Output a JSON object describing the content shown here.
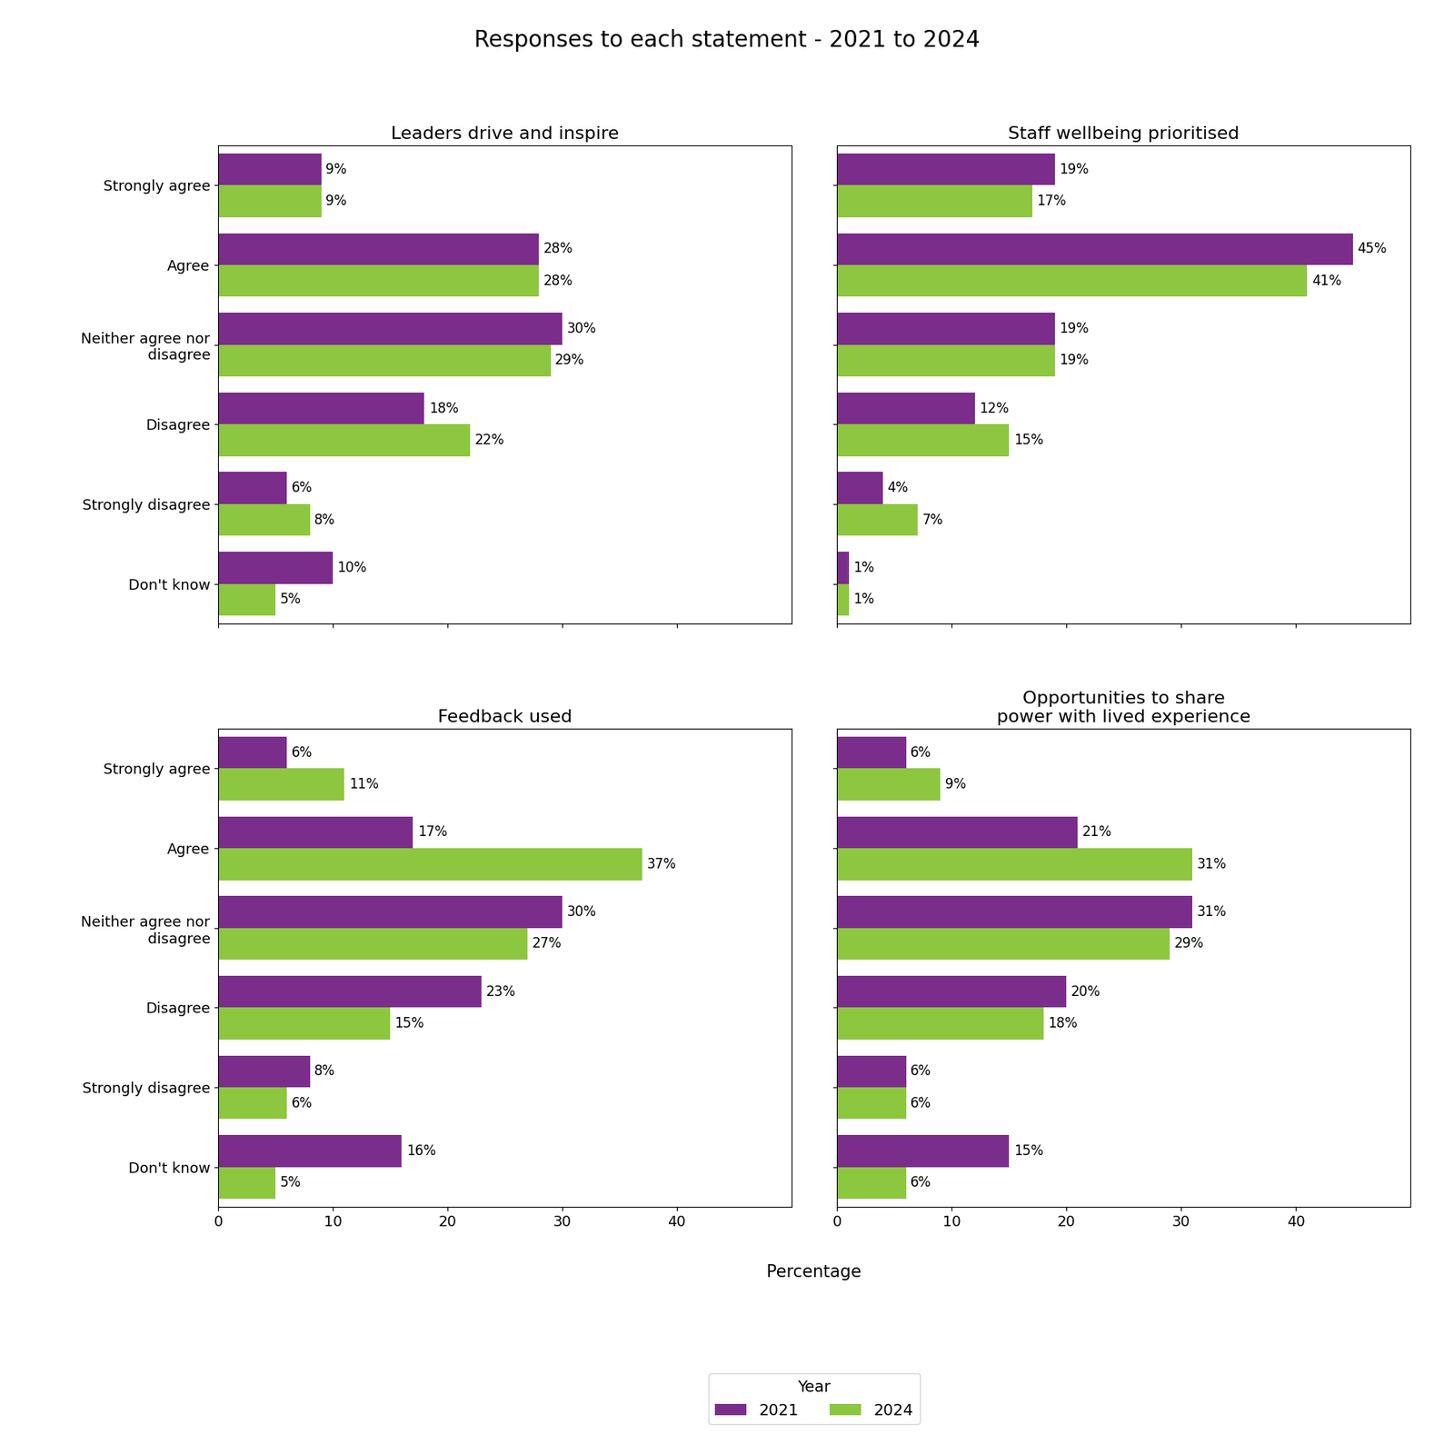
{
  "title": "Responses to each statement - 2021 to 2024",
  "xlabel": "Percentage",
  "legend": "lower center",
  "legend_title": "Year",
  "chart_data": [
    {
      "type": "bar",
      "orientation": "horizontal",
      "title": "Leaders drive and inspire",
      "categories": [
        "Strongly agree",
        "Agree",
        "Neither agree nor\ndisagree",
        "Disagree",
        "Strongly disagree",
        "Don't know"
      ],
      "series": [
        {
          "name": "2021",
          "color": "#7B2D8B",
          "values": [
            9,
            28,
            30,
            18,
            6,
            10
          ],
          "value_labels": [
            "9%",
            "28%",
            "30%",
            "18%",
            "6%",
            "10%"
          ]
        },
        {
          "name": "2024",
          "color": "#8DC63F",
          "values": [
            9,
            28,
            29,
            22,
            8,
            5
          ],
          "value_labels": [
            "9%",
            "28%",
            "29%",
            "22%",
            "8%",
            "5%"
          ]
        }
      ],
      "xlim": [
        0,
        50
      ],
      "xticks": [
        0,
        10,
        20,
        30,
        40
      ],
      "grid": false,
      "data_labels": true,
      "tick_labels": "y"
    },
    {
      "type": "bar",
      "orientation": "horizontal",
      "title": "Staff wellbeing prioritised",
      "categories": [
        "Strongly agree",
        "Agree",
        "Neither agree nor\ndisagree",
        "Disagree",
        "Strongly disagree",
        "Don't know"
      ],
      "series": [
        {
          "name": "2021",
          "color": "#7B2D8B",
          "values": [
            19,
            45,
            19,
            12,
            4,
            1
          ],
          "value_labels": [
            "19%",
            "45%",
            "19%",
            "12%",
            "4%",
            "1%"
          ]
        },
        {
          "name": "2024",
          "color": "#8DC63F",
          "values": [
            17,
            41,
            19,
            15,
            7,
            1
          ],
          "value_labels": [
            "17%",
            "41%",
            "19%",
            "15%",
            "7%",
            "1%"
          ]
        }
      ],
      "xlim": [
        0,
        50
      ],
      "xticks": [
        0,
        10,
        20,
        30,
        40
      ],
      "grid": false,
      "data_labels": true,
      "tick_labels": false
    },
    {
      "type": "bar",
      "orientation": "horizontal",
      "title": "Feedback used",
      "categories": [
        "Strongly agree",
        "Agree",
        "Neither agree nor\ndisagree",
        "Disagree",
        "Strongly disagree",
        "Don't know"
      ],
      "series": [
        {
          "name": "2021",
          "color": "#7B2D8B",
          "values": [
            6,
            17,
            30,
            23,
            8,
            16
          ],
          "value_labels": [
            "6%",
            "17%",
            "30%",
            "23%",
            "8%",
            "16%"
          ]
        },
        {
          "name": "2024",
          "color": "#8DC63F",
          "values": [
            11,
            37,
            27,
            15,
            6,
            5
          ],
          "value_labels": [
            "11%",
            "37%",
            "27%",
            "15%",
            "6%",
            "5%"
          ]
        }
      ],
      "xlim": [
        0,
        50
      ],
      "xticks": [
        0,
        10,
        20,
        30,
        40
      ],
      "grid": false,
      "data_labels": true
    },
    {
      "type": "bar",
      "orientation": "horizontal",
      "title": "Opportunities to share\npower with lived experience",
      "categories": [
        "Strongly agree",
        "Agree",
        "Neither agree nor\ndisagree",
        "Disagree",
        "Strongly disagree",
        "Don't know"
      ],
      "series": [
        {
          "name": "2021",
          "color": "#7B2D8B",
          "values": [
            6,
            21,
            31,
            20,
            6,
            15
          ],
          "value_labels": [
            "6%",
            "21%",
            "31%",
            "20%",
            "6%",
            "15%"
          ]
        },
        {
          "name": "2024",
          "color": "#8DC63F",
          "values": [
            9,
            31,
            29,
            18,
            6,
            6
          ],
          "value_labels": [
            "9%",
            "31%",
            "29%",
            "18%",
            "6%",
            "6%"
          ]
        }
      ],
      "xlim": [
        0,
        50
      ],
      "xticks": [
        0,
        10,
        20,
        30,
        40
      ],
      "grid": false,
      "data_labels": true,
      "tick_labels": "x"
    }
  ]
}
